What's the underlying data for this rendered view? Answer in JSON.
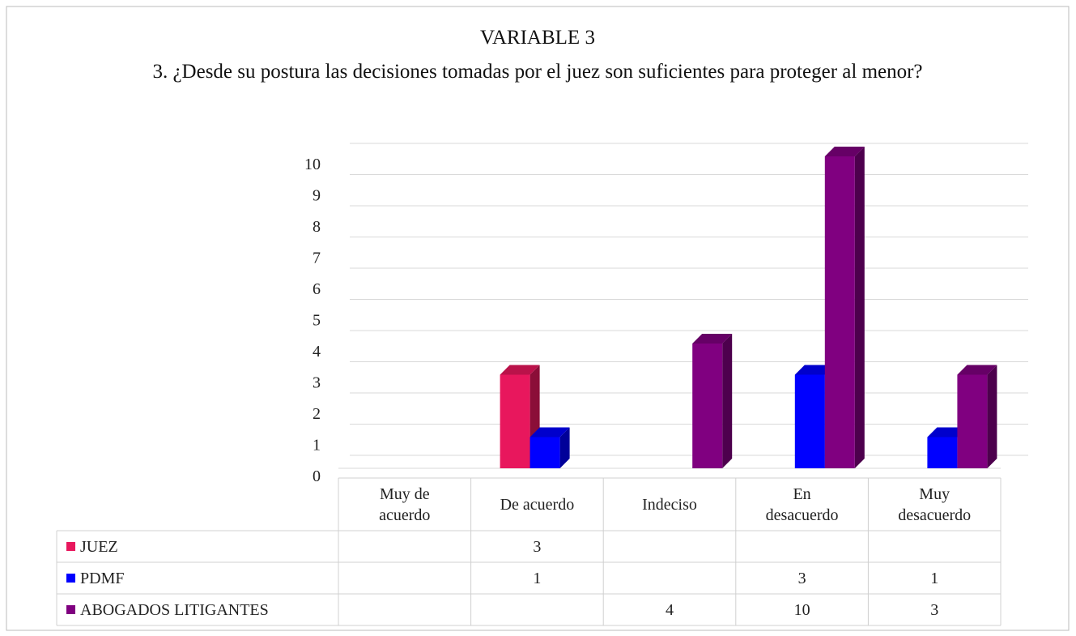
{
  "chart_data": {
    "type": "bar",
    "title": "VARIABLE 3",
    "subtitle": "3. ¿Desde su postura las decisiones  tomadas por el juez son suficientes para proteger al menor?",
    "categories": [
      "Muy de\nacuerdo",
      "De acuerdo",
      "Indeciso",
      "En\ndesacuerdo",
      "Muy\ndesacuerdo"
    ],
    "series": [
      {
        "name": "JUEZ",
        "color": "#e8175d",
        "values": [
          null,
          3,
          null,
          null,
          null
        ]
      },
      {
        "name": "PDMF",
        "color": "#0000ff",
        "values": [
          null,
          1,
          null,
          3,
          1
        ]
      },
      {
        "name": "ABOGADOS LITIGANTES",
        "color": "#800080",
        "values": [
          null,
          null,
          4,
          10,
          3
        ]
      }
    ],
    "ylim": [
      0,
      10
    ],
    "yticks": [
      0,
      1,
      2,
      3,
      4,
      5,
      6,
      7,
      8,
      9,
      10
    ],
    "grid": true
  }
}
